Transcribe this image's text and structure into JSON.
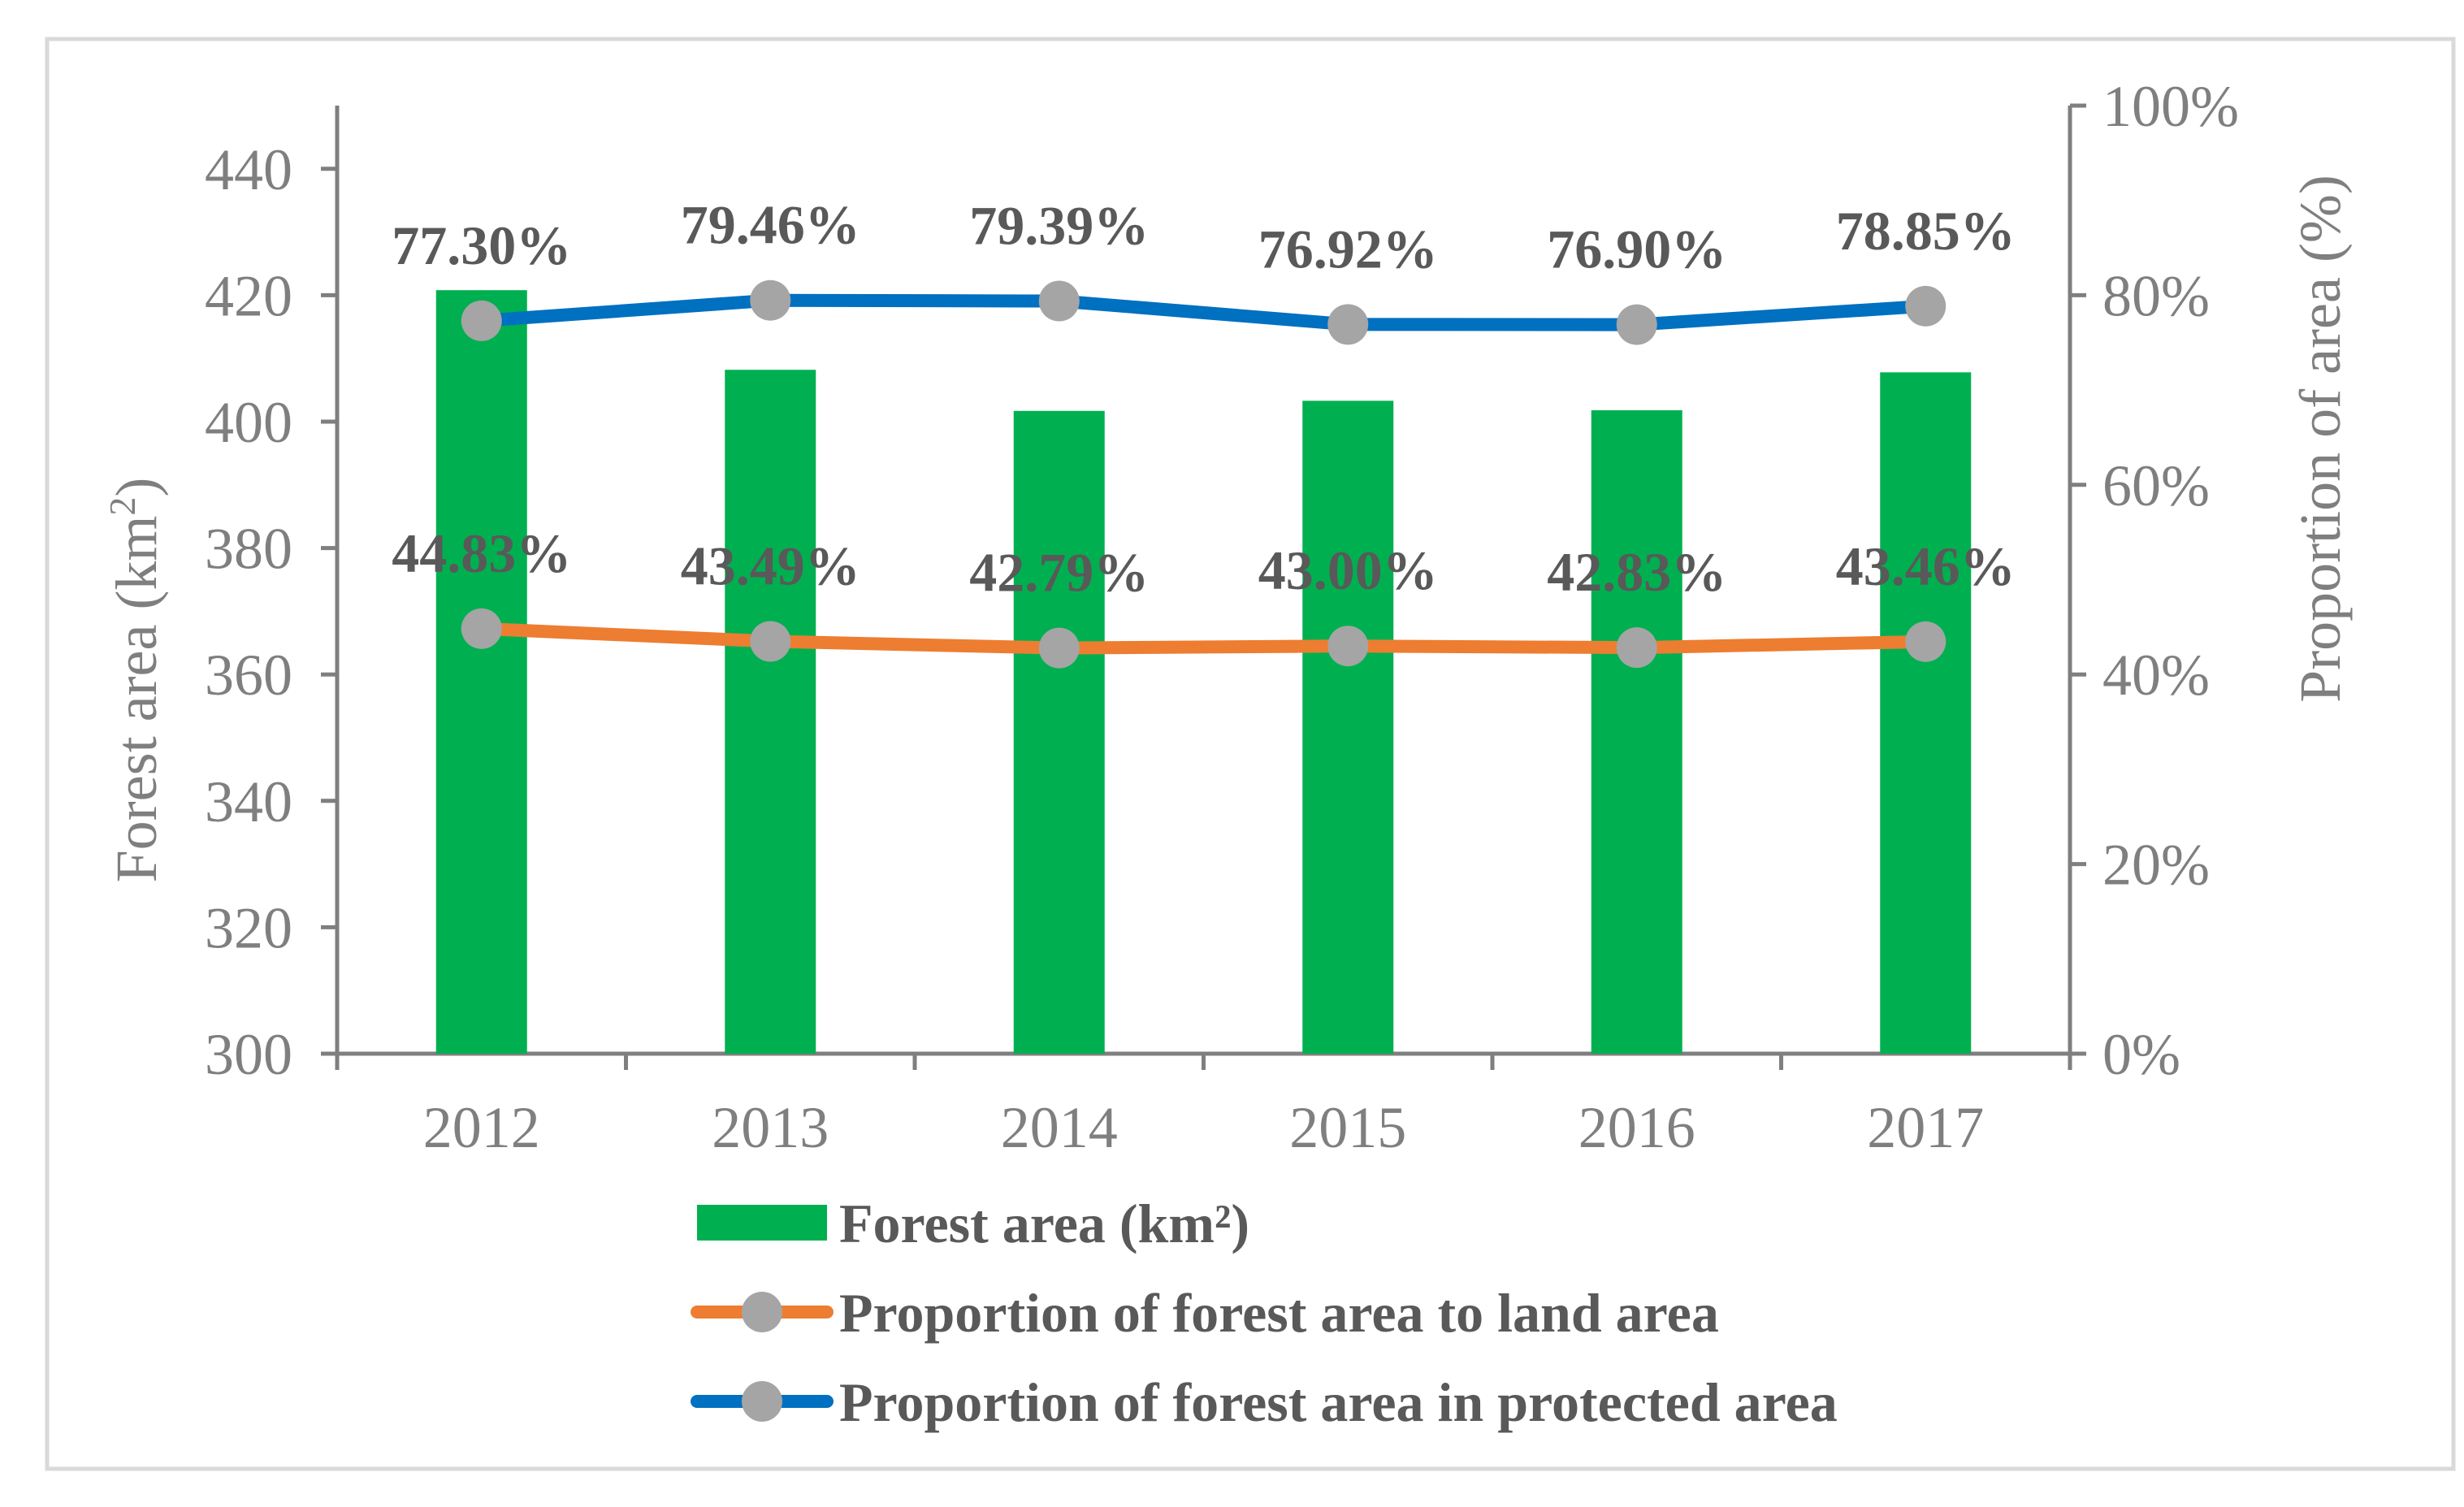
{
  "chart_data": {
    "type": "bar",
    "categories": [
      "2012",
      "2013",
      "2014",
      "2015",
      "2016",
      "2017"
    ],
    "y_left": {
      "label_text": "Forest area (km",
      "label_sup": "2",
      "label_end": ")",
      "ticks": [
        "300",
        "320",
        "340",
        "360",
        "380",
        "400",
        "420",
        "440"
      ],
      "ylim": [
        300,
        450
      ]
    },
    "y_right": {
      "label": "Proportion of area (%)",
      "ticks": [
        "0%",
        "20%",
        "40%",
        "60%",
        "80%",
        "100%"
      ],
      "ylim": [
        0,
        100
      ]
    },
    "series": [
      {
        "name": "Forest area (km²)",
        "kind": "bar",
        "axis": "left",
        "color": "#00b050",
        "values": [
          420.8,
          408.2,
          401.7,
          403.3,
          401.8,
          407.8
        ]
      },
      {
        "name": "Proportion of forest area to land area",
        "kind": "line",
        "axis": "right",
        "color": "#ed7d31",
        "marker_color": "#a5a5a5",
        "values": [
          44.83,
          43.49,
          42.79,
          43.0,
          42.83,
          43.46
        ],
        "labels": [
          "44.83%",
          "43.49%",
          "42.79%",
          "43.00%",
          "42.83%",
          "43.46%"
        ]
      },
      {
        "name": "Proportion of forest area in protected area",
        "kind": "line",
        "axis": "right",
        "color": "#0070c0",
        "marker_color": "#a5a5a5",
        "values": [
          77.3,
          79.46,
          79.39,
          76.92,
          76.9,
          78.85
        ],
        "labels": [
          "77.30%",
          "79.46%",
          "79.39%",
          "76.92%",
          "76.90%",
          "78.85%"
        ]
      }
    ],
    "legend_position": "bottom",
    "grid": false,
    "colors": {
      "axis": "#7f7f7f",
      "frame": "#d9d9d9",
      "label": "#595959"
    }
  }
}
